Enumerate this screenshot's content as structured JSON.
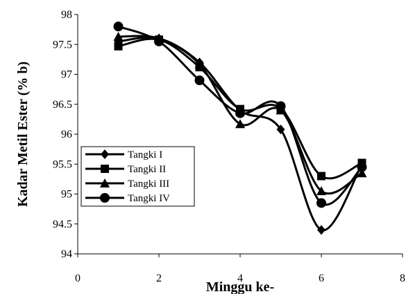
{
  "chart_data": {
    "type": "line",
    "title": "",
    "xlabel": "Minggu ke-",
    "ylabel": "Kadar Metil Ester (% b)",
    "xlim": [
      0,
      8
    ],
    "ylim": [
      94,
      98
    ],
    "x_ticks": [
      0,
      2,
      4,
      6,
      8
    ],
    "y_ticks": [
      94,
      94.5,
      95,
      95.5,
      96,
      96.5,
      97,
      97.5,
      98
    ],
    "grid": false,
    "legend_position": "left",
    "x": [
      1,
      2,
      3,
      4,
      5,
      6,
      7
    ],
    "series": [
      {
        "name": "Tangki I",
        "marker": "diamond",
        "values": [
          97.55,
          97.6,
          97.2,
          96.4,
          96.08,
          94.4,
          95.5
        ]
      },
      {
        "name": "Tangki II",
        "marker": "square",
        "values": [
          97.47,
          97.58,
          97.12,
          96.42,
          96.43,
          95.3,
          95.52
        ]
      },
      {
        "name": "Tangki III",
        "marker": "triangle",
        "values": [
          97.63,
          97.6,
          97.17,
          96.17,
          96.4,
          95.05,
          95.35
        ]
      },
      {
        "name": "Tangki IV",
        "marker": "circle",
        "values": [
          97.8,
          97.55,
          96.9,
          96.35,
          96.47,
          94.85,
          95.45
        ]
      }
    ]
  }
}
